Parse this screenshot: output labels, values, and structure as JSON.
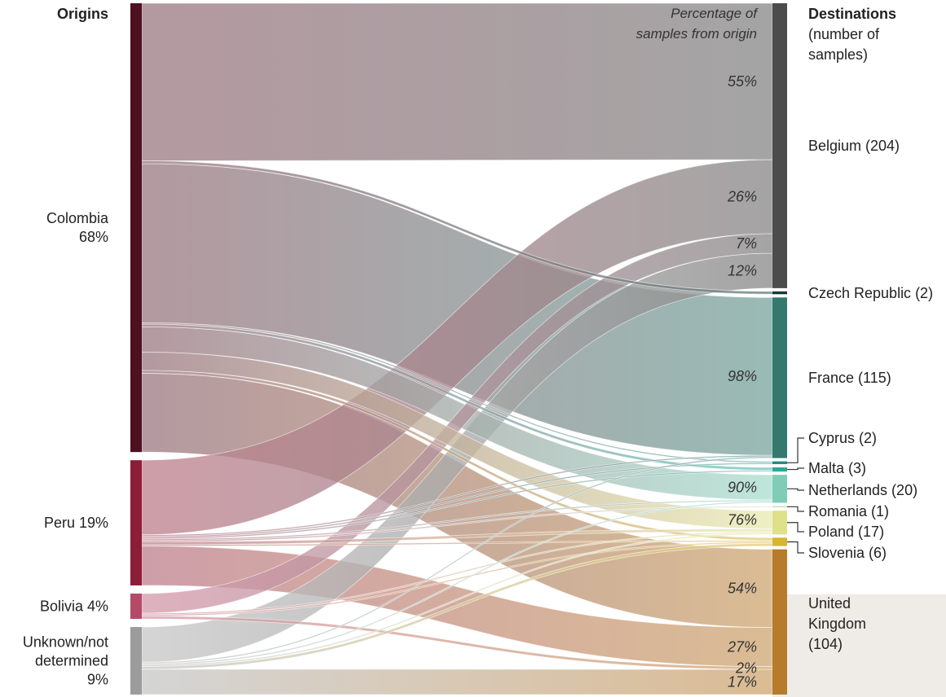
{
  "chart_data": {
    "type": "sankey",
    "title": "",
    "origins_header": "Origins",
    "destinations_header": [
      "Destinations",
      "(number of",
      "samples)"
    ],
    "percentage_header": [
      "Percentage of",
      "samples from origin"
    ],
    "origins": [
      {
        "id": "colombia",
        "lines": [
          "Colombia",
          "68%"
        ],
        "share": 68,
        "color": "#4e1121"
      },
      {
        "id": "peru",
        "lines": [
          "Peru 19%"
        ],
        "share": 19,
        "color": "#8c1d36"
      },
      {
        "id": "bolivia",
        "lines": [
          "Bolivia 4%"
        ],
        "share": 4,
        "color": "#b44a68"
      },
      {
        "id": "unknown",
        "lines": [
          "Unknown/not",
          "determined",
          "9%"
        ],
        "share": 9,
        "color": "#9c9c9c"
      }
    ],
    "destinations": [
      {
        "id": "belgium",
        "lines": [
          "Belgium (204)"
        ],
        "name": "Belgium",
        "count": 204,
        "color": "#4c4c4c"
      },
      {
        "id": "czech",
        "lines": [
          "Czech Republic (2)"
        ],
        "name": "Czech Republic",
        "count": 2,
        "color": "#143a38"
      },
      {
        "id": "france",
        "lines": [
          "France (115)"
        ],
        "name": "France",
        "count": 115,
        "color": "#35786e"
      },
      {
        "id": "cyprus",
        "lines": [
          "Cyprus (2)"
        ],
        "name": "Cyprus",
        "count": 2,
        "color": "#1f8e84"
      },
      {
        "id": "malta",
        "lines": [
          "Malta (3)"
        ],
        "name": "Malta",
        "count": 3,
        "color": "#2ba89c"
      },
      {
        "id": "netherlands",
        "lines": [
          "Netherlands (20)"
        ],
        "name": "Netherlands",
        "count": 20,
        "color": "#7fcdb6"
      },
      {
        "id": "romania",
        "lines": [
          "Romania (1)"
        ],
        "name": "Romania",
        "count": 1,
        "color": "#c8e2cc"
      },
      {
        "id": "poland",
        "lines": [
          "Poland (17)"
        ],
        "name": "Poland",
        "count": 17,
        "color": "#dfe08a"
      },
      {
        "id": "slovenia",
        "lines": [
          "Slovenia (6)"
        ],
        "name": "Slovenia",
        "count": 6,
        "color": "#d8b431"
      },
      {
        "id": "uk",
        "lines": [
          "United",
          "Kingdom",
          "(104)"
        ],
        "name": "United Kingdom",
        "count": 104,
        "color": "#b77b2c"
      }
    ],
    "percent_labels": [
      {
        "dest": "belgium",
        "origin": "colombia",
        "text": "55%"
      },
      {
        "dest": "belgium",
        "origin": "peru",
        "text": "26%"
      },
      {
        "dest": "belgium",
        "origin": "bolivia",
        "text": "7%"
      },
      {
        "dest": "belgium",
        "origin": "unknown",
        "text": "12%"
      },
      {
        "dest": "france",
        "origin": "colombia",
        "text": "98%"
      },
      {
        "dest": "netherlands",
        "origin": "colombia",
        "text": "90%"
      },
      {
        "dest": "poland",
        "origin": "colombia",
        "text": "76%"
      },
      {
        "dest": "uk",
        "origin": "colombia",
        "text": "54%"
      },
      {
        "dest": "uk",
        "origin": "peru",
        "text": "27%"
      },
      {
        "dest": "uk",
        "origin": "bolivia",
        "text": "2%"
      },
      {
        "dest": "uk",
        "origin": "unknown",
        "text": "17%"
      }
    ],
    "flows": [
      {
        "from": "colombia",
        "to": "belgium",
        "value": 112
      },
      {
        "from": "colombia",
        "to": "czech",
        "value": 2
      },
      {
        "from": "colombia",
        "to": "france",
        "value": 113
      },
      {
        "from": "colombia",
        "to": "cyprus",
        "value": 1
      },
      {
        "from": "colombia",
        "to": "malta",
        "value": 2
      },
      {
        "from": "colombia",
        "to": "netherlands",
        "value": 18
      },
      {
        "from": "colombia",
        "to": "poland",
        "value": 13
      },
      {
        "from": "colombia",
        "to": "slovenia",
        "value": 2
      },
      {
        "from": "colombia",
        "to": "uk",
        "value": 56
      },
      {
        "from": "peru",
        "to": "belgium",
        "value": 53
      },
      {
        "from": "peru",
        "to": "france",
        "value": 1
      },
      {
        "from": "peru",
        "to": "cyprus",
        "value": 1
      },
      {
        "from": "peru",
        "to": "malta",
        "value": 1
      },
      {
        "from": "peru",
        "to": "netherlands",
        "value": 1
      },
      {
        "from": "peru",
        "to": "romania",
        "value": 1
      },
      {
        "from": "peru",
        "to": "poland",
        "value": 2
      },
      {
        "from": "peru",
        "to": "slovenia",
        "value": 1
      },
      {
        "from": "peru",
        "to": "uk",
        "value": 28
      },
      {
        "from": "bolivia",
        "to": "belgium",
        "value": 14
      },
      {
        "from": "bolivia",
        "to": "poland",
        "value": 1
      },
      {
        "from": "bolivia",
        "to": "slovenia",
        "value": 1
      },
      {
        "from": "bolivia",
        "to": "uk",
        "value": 2
      },
      {
        "from": "unknown",
        "to": "belgium",
        "value": 25
      },
      {
        "from": "unknown",
        "to": "france",
        "value": 1
      },
      {
        "from": "unknown",
        "to": "netherlands",
        "value": 1
      },
      {
        "from": "unknown",
        "to": "poland",
        "value": 1
      },
      {
        "from": "unknown",
        "to": "slovenia",
        "value": 2
      },
      {
        "from": "unknown",
        "to": "uk",
        "value": 18
      }
    ]
  }
}
